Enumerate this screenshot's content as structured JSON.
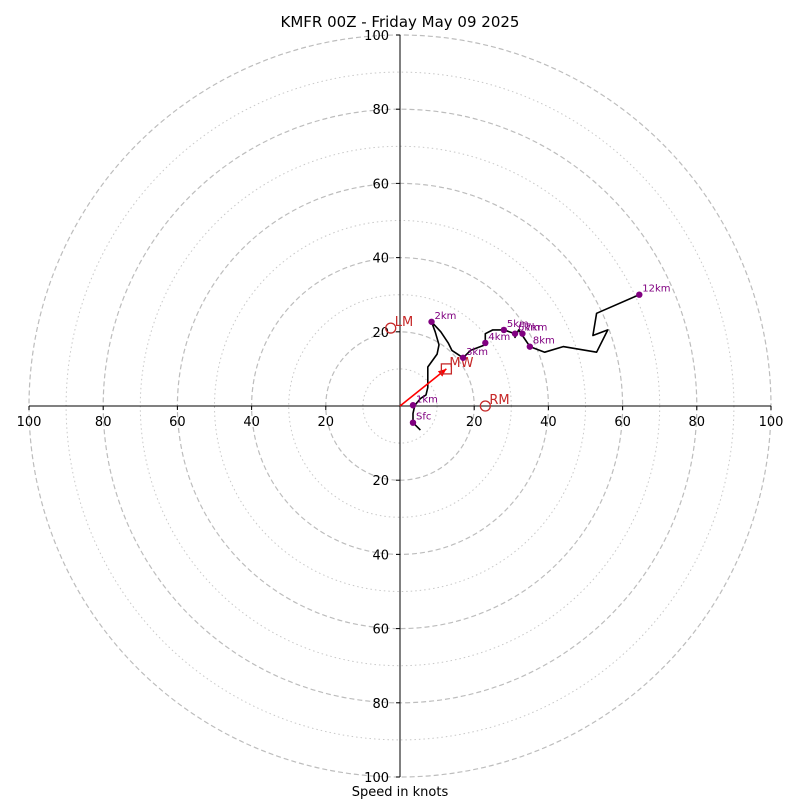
{
  "chart_data": {
    "type": "hodograph",
    "title": "KMFR 00Z - Friday May 09 2025",
    "xlabel": "Speed in knots",
    "ylabel": "",
    "xlim": [
      -100,
      100
    ],
    "ylim": [
      -100,
      100
    ],
    "rings_dashed": [
      20,
      40,
      60,
      80,
      100
    ],
    "rings_dotted": [
      10,
      30,
      50,
      70,
      90
    ],
    "x_ticks": [
      {
        "value": -100,
        "label": "100"
      },
      {
        "value": -80,
        "label": "80"
      },
      {
        "value": -60,
        "label": "60"
      },
      {
        "value": -40,
        "label": "40"
      },
      {
        "value": -20,
        "label": "20"
      },
      {
        "value": 20,
        "label": "20"
      },
      {
        "value": 40,
        "label": "40"
      },
      {
        "value": 60,
        "label": "60"
      },
      {
        "value": 80,
        "label": "80"
      },
      {
        "value": 100,
        "label": "100"
      }
    ],
    "y_ticks": [
      {
        "value": 100,
        "label": "100"
      },
      {
        "value": 80,
        "label": "80"
      },
      {
        "value": 60,
        "label": "60"
      },
      {
        "value": 40,
        "label": "40"
      },
      {
        "value": 20,
        "label": "20"
      },
      {
        "value": -20,
        "label": "20"
      },
      {
        "value": -40,
        "label": "40"
      },
      {
        "value": -60,
        "label": "60"
      },
      {
        "value": -80,
        "label": "80"
      },
      {
        "value": -100,
        "label": "100"
      }
    ],
    "hodograph_trace": {
      "color": "#000000",
      "u": [
        5.5,
        3.5,
        3.5,
        4,
        5.5,
        7,
        7.5,
        7.5,
        10,
        10.5,
        9.5,
        8.5,
        11,
        13,
        14,
        17,
        19,
        23,
        23,
        25,
        28,
        31,
        31,
        32,
        33,
        35,
        39,
        44,
        53,
        56,
        52,
        53,
        64.5
      ],
      "v": [
        -6.5,
        -4.5,
        -2,
        0.2,
        2,
        3,
        5,
        10.5,
        14,
        16.5,
        20,
        22.7,
        20,
        17,
        15,
        13,
        15,
        16.5,
        19.5,
        20.5,
        20.5,
        19.5,
        18.5,
        20.5,
        19,
        16,
        14.5,
        16,
        14.5,
        20.5,
        19,
        25,
        30
      ]
    },
    "height_markers": {
      "color": "#800080",
      "points": [
        {
          "label": "Sfc",
          "u": 3.5,
          "v": -4.5
        },
        {
          "label": "1km",
          "u": 3.5,
          "v": 0.2
        },
        {
          "label": "2km",
          "u": 8.5,
          "v": 22.7
        },
        {
          "label": "3km",
          "u": 17,
          "v": 13
        },
        {
          "label": "4km",
          "u": 23,
          "v": 17
        },
        {
          "label": "5km",
          "u": 28,
          "v": 20.5
        },
        {
          "label": "6km",
          "u": 31,
          "v": 19.5
        },
        {
          "label": "7km",
          "u": 33,
          "v": 19.5
        },
        {
          "label": "8km",
          "u": 35,
          "v": 16
        },
        {
          "label": "12km",
          "u": 64.5,
          "v": 30
        }
      ]
    },
    "storm_motion": {
      "color": "#ff0000",
      "vector": {
        "u0": 0,
        "v0": 0,
        "u1": 12.5,
        "v1": 10
      },
      "mean_wind": {
        "label": "MW",
        "u": 12.5,
        "v": 10
      },
      "left_mover": {
        "label": "LM",
        "u": -2.5,
        "v": 21
      },
      "right_mover": {
        "label": "RM",
        "u": 23,
        "v": 0
      }
    }
  }
}
